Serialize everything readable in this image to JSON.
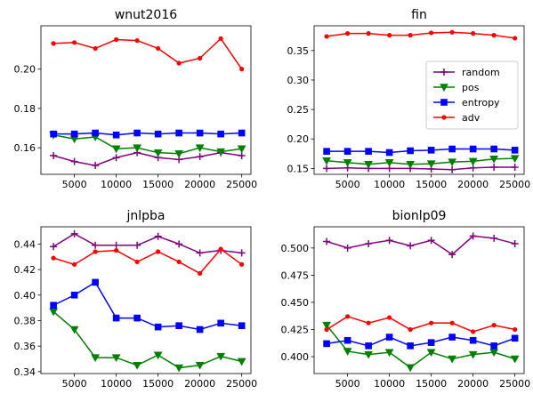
{
  "chart_data": [
    {
      "type": "line",
      "title": "wnut2016",
      "xlim": [
        1000,
        26100
      ],
      "ylim": [
        0.1465,
        0.222
      ],
      "x_ticks": [
        5000,
        10000,
        15000,
        20000,
        25000
      ],
      "y_ticks": [
        0.16,
        0.18,
        0.2
      ],
      "x": [
        2500,
        5000,
        7500,
        10000,
        12500,
        15000,
        17500,
        20000,
        22500,
        25000
      ],
      "series": [
        {
          "name": "random",
          "color": "#800080",
          "marker": "plus",
          "values": [
            0.156,
            0.153,
            0.151,
            0.155,
            0.1575,
            0.155,
            0.154,
            0.1555,
            0.1575,
            0.156
          ]
        },
        {
          "name": "pos",
          "color": "#008000",
          "marker": "triangle-down",
          "values": [
            0.1665,
            0.1645,
            0.1655,
            0.1595,
            0.16,
            0.1575,
            0.157,
            0.16,
            0.158,
            0.1595
          ]
        },
        {
          "name": "entropy",
          "color": "#0000ff",
          "marker": "square",
          "values": [
            0.167,
            0.167,
            0.1675,
            0.1665,
            0.1675,
            0.167,
            0.1675,
            0.1675,
            0.167,
            0.1675
          ]
        },
        {
          "name": "adv",
          "color": "#ff0000",
          "marker": "circle",
          "values": [
            0.213,
            0.2135,
            0.2105,
            0.215,
            0.2145,
            0.2105,
            0.203,
            0.2055,
            0.2155,
            0.2
          ]
        }
      ]
    },
    {
      "type": "line",
      "title": "fin",
      "xlim": [
        1000,
        26100
      ],
      "ylim": [
        0.14,
        0.392
      ],
      "x_ticks": [
        5000,
        10000,
        15000,
        20000,
        25000
      ],
      "y_ticks": [
        0.15,
        0.2,
        0.25,
        0.3,
        0.35
      ],
      "legend": {
        "placement": "center-right",
        "entries": [
          "random",
          "pos",
          "entropy",
          "adv"
        ]
      },
      "x": [
        2500,
        5000,
        7500,
        10000,
        12500,
        15000,
        17500,
        20000,
        22500,
        25000
      ],
      "series": [
        {
          "name": "random",
          "color": "#800080",
          "marker": "plus",
          "values": [
            0.15,
            0.151,
            0.15,
            0.15,
            0.15,
            0.149,
            0.148,
            0.151,
            0.152,
            0.152
          ]
        },
        {
          "name": "pos",
          "color": "#008000",
          "marker": "triangle-down",
          "values": [
            0.163,
            0.16,
            0.157,
            0.16,
            0.157,
            0.158,
            0.161,
            0.162,
            0.166,
            0.167
          ]
        },
        {
          "name": "entropy",
          "color": "#0000ff",
          "marker": "square",
          "values": [
            0.179,
            0.179,
            0.179,
            0.177,
            0.18,
            0.181,
            0.183,
            0.183,
            0.183,
            0.181
          ]
        },
        {
          "name": "adv",
          "color": "#ff0000",
          "marker": "circle",
          "values": [
            0.374,
            0.379,
            0.379,
            0.376,
            0.376,
            0.38,
            0.381,
            0.379,
            0.376,
            0.371
          ]
        }
      ]
    },
    {
      "type": "line",
      "title": "jnlpba",
      "xlim": [
        1000,
        26100
      ],
      "ylim": [
        0.3385,
        0.4535
      ],
      "x_ticks": [
        5000,
        10000,
        15000,
        20000,
        25000
      ],
      "y_ticks": [
        0.34,
        0.36,
        0.38,
        0.4,
        0.42,
        0.44
      ],
      "x": [
        2500,
        5000,
        7500,
        10000,
        12500,
        15000,
        17500,
        20000,
        22500,
        25000
      ],
      "series": [
        {
          "name": "random",
          "color": "#800080",
          "marker": "plus",
          "values": [
            0.438,
            0.448,
            0.439,
            0.439,
            0.439,
            0.446,
            0.44,
            0.433,
            0.435,
            0.433
          ]
        },
        {
          "name": "pos",
          "color": "#008000",
          "marker": "triangle-down",
          "values": [
            0.387,
            0.373,
            0.351,
            0.351,
            0.345,
            0.353,
            0.343,
            0.345,
            0.352,
            0.348
          ]
        },
        {
          "name": "entropy",
          "color": "#0000ff",
          "marker": "square",
          "values": [
            0.392,
            0.4,
            0.41,
            0.382,
            0.382,
            0.375,
            0.376,
            0.373,
            0.378,
            0.376
          ]
        },
        {
          "name": "adv",
          "color": "#ff0000",
          "marker": "circle",
          "values": [
            0.429,
            0.424,
            0.434,
            0.435,
            0.426,
            0.434,
            0.426,
            0.417,
            0.436,
            0.424
          ]
        }
      ]
    },
    {
      "type": "line",
      "title": "bionlp09",
      "xlim": [
        1000,
        26100
      ],
      "ylim": [
        0.3845,
        0.5195
      ],
      "x_ticks": [
        5000,
        10000,
        15000,
        20000,
        25000
      ],
      "y_ticks": [
        0.4,
        0.425,
        0.45,
        0.475,
        0.5
      ],
      "x": [
        2500,
        5000,
        7500,
        10000,
        12500,
        15000,
        17500,
        20000,
        22500,
        25000
      ],
      "series": [
        {
          "name": "random",
          "color": "#800080",
          "marker": "plus",
          "values": [
            0.506,
            0.5,
            0.504,
            0.507,
            0.502,
            0.507,
            0.494,
            0.511,
            0.509,
            0.504
          ]
        },
        {
          "name": "pos",
          "color": "#008000",
          "marker": "triangle-down",
          "values": [
            0.429,
            0.405,
            0.402,
            0.404,
            0.39,
            0.404,
            0.398,
            0.402,
            0.404,
            0.398
          ]
        },
        {
          "name": "entropy",
          "color": "#0000ff",
          "marker": "square",
          "values": [
            0.412,
            0.415,
            0.41,
            0.418,
            0.41,
            0.413,
            0.418,
            0.415,
            0.41,
            0.417
          ]
        },
        {
          "name": "adv",
          "color": "#ff0000",
          "marker": "circle",
          "values": [
            0.425,
            0.437,
            0.431,
            0.436,
            0.425,
            0.431,
            0.431,
            0.423,
            0.429,
            0.425
          ]
        }
      ]
    }
  ]
}
